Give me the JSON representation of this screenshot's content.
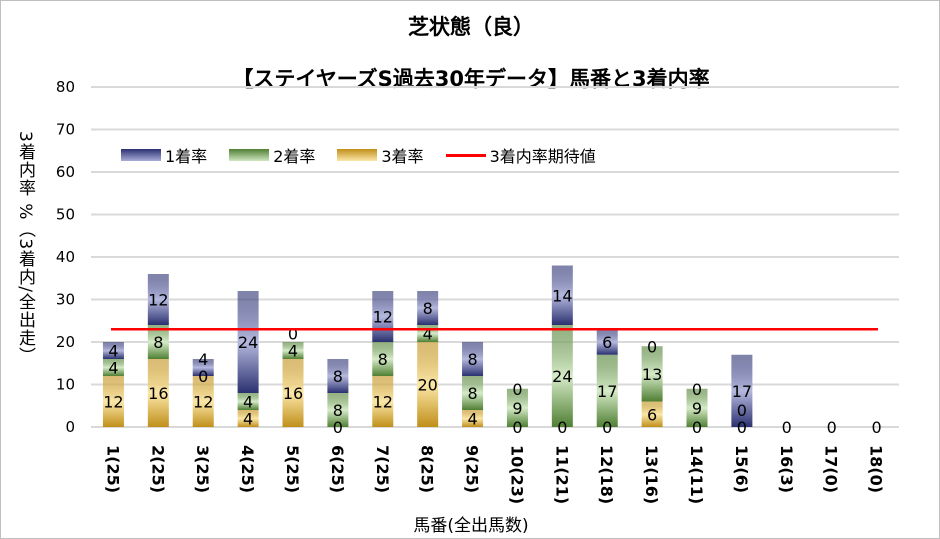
{
  "chart_data": {
    "type": "bar",
    "stacked": true,
    "title": "芝状態（良）",
    "subtitle": "【ステイヤーズS過去30年データ】馬番と3着内率",
    "xlabel": "馬番(全出馬数)",
    "ylabel": "3着内率 %（3着内/全出走）",
    "ylim": [
      0,
      80
    ],
    "yticks": [
      0,
      10,
      20,
      30,
      40,
      50,
      60,
      70,
      80
    ],
    "grid": true,
    "legend_position": "top-left",
    "categories": [
      "1(25)",
      "2(25)",
      "3(25)",
      "4(25)",
      "5(25)",
      "6(25)",
      "7(25)",
      "8(25)",
      "9(25)",
      "10(23)",
      "11(21)",
      "12(18)",
      "13(16)",
      "14(11)",
      "15(6)",
      "16(3)",
      "17(0)",
      "18(0)"
    ],
    "series": [
      {
        "name": "3着率",
        "color": "#d9a93a",
        "values": [
          12,
          16,
          12,
          4,
          16,
          0,
          12,
          20,
          4,
          0,
          0,
          0,
          6,
          0,
          0,
          0,
          0,
          0
        ]
      },
      {
        "name": "2着率",
        "color": "#8fbf6a",
        "values": [
          4,
          8,
          0,
          4,
          4,
          8,
          8,
          4,
          8,
          9,
          24,
          17,
          13,
          9,
          0,
          0,
          0,
          0
        ]
      },
      {
        "name": "1着率",
        "color": "#5a63a8",
        "values": [
          4,
          12,
          4,
          24,
          0,
          8,
          12,
          8,
          8,
          0,
          14,
          6,
          0,
          0,
          17,
          0,
          0,
          0
        ]
      }
    ],
    "reference_line": {
      "name": "3着内率期待値",
      "value": 23,
      "color": "#ff0000"
    }
  }
}
